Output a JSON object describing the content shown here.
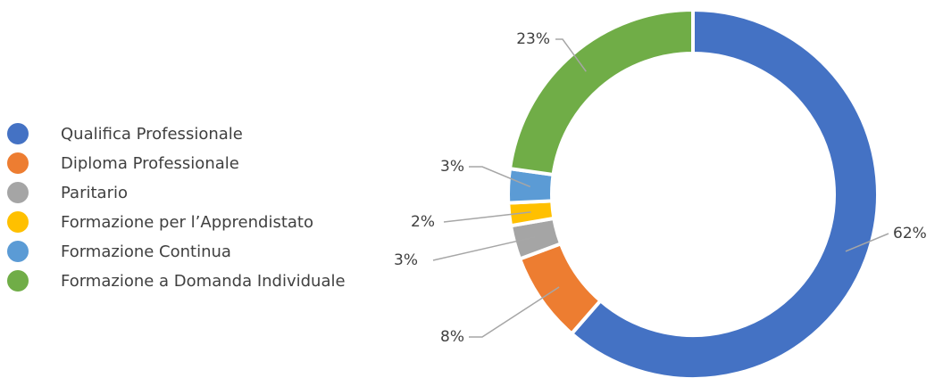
{
  "chart_data": {
    "type": "donut",
    "categories": [
      "Qualifica Professionale",
      "Diploma Professionale",
      "Paritario",
      "Formazione per l’Apprendistato",
      "Formazione Continua",
      "Formazione a Domanda Individuale"
    ],
    "values": [
      62,
      8,
      3,
      2,
      3,
      23
    ],
    "value_labels": [
      "62%",
      "8%",
      "3%",
      "2%",
      "3%",
      "23%"
    ],
    "colors": [
      "#4472c4",
      "#ed7d31",
      "#a5a5a5",
      "#ffc000",
      "#5b9bd5",
      "#70ad47"
    ],
    "legend": "left"
  }
}
